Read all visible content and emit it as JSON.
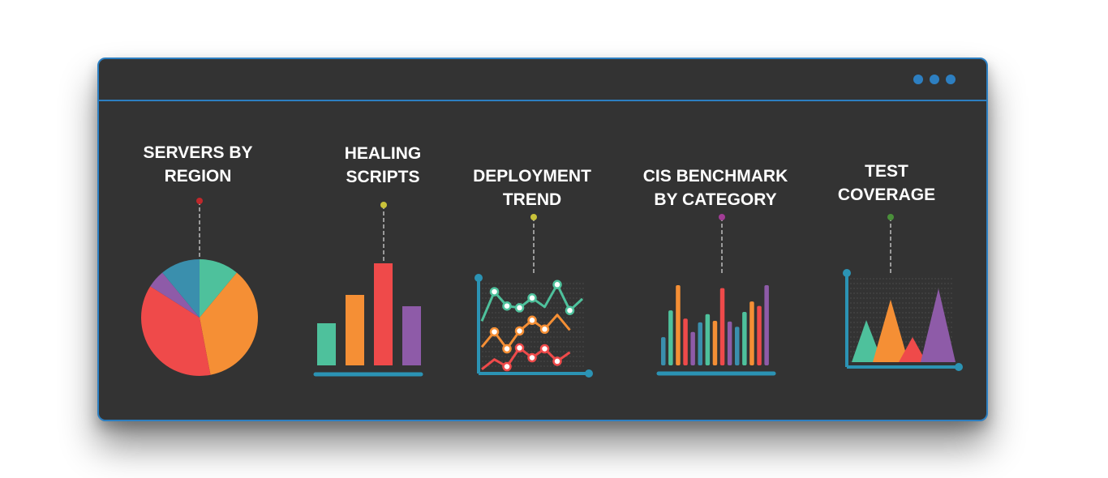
{
  "window": {
    "accent": "#2d7fc1",
    "background": "#333333",
    "controls": [
      "dot-icon",
      "dot-icon",
      "dot-icon"
    ]
  },
  "palette": {
    "green": "#4ec19c",
    "orange": "#f58f35",
    "red": "#ef4a4a",
    "purple": "#8e5ba8",
    "blue": "#3a8fad",
    "teal": "#2b93b4"
  },
  "chart_data": [
    {
      "type": "pie",
      "title": "SERVERS BY\nREGION",
      "pin_color": "#c0282b",
      "slices": [
        {
          "value": 11,
          "color": "#4ec19c"
        },
        {
          "value": 36,
          "color": "#f58f35"
        },
        {
          "value": 37,
          "color": "#ef4a4a"
        },
        {
          "value": 5,
          "color": "#8e5ba8"
        },
        {
          "value": 11,
          "color": "#3a8fad"
        }
      ]
    },
    {
      "type": "bar",
      "title": "HEALING\nSCRIPTS",
      "pin_color": "#c9c23a",
      "values": [
        52,
        87,
        126,
        73
      ],
      "colors": [
        "#4ec19c",
        "#f58f35",
        "#ef4a4a",
        "#8e5ba8"
      ],
      "ylim": [
        0,
        130
      ]
    },
    {
      "type": "line",
      "title": "DEPLOYMENT\nTREND",
      "pin_color": "#c9c23a",
      "ylim": [
        0,
        10
      ],
      "series": [
        {
          "color": "#4ec19c",
          "values": [
            5.6,
            8.9,
            7.3,
            7.1,
            8.2,
            7.2,
            9.7,
            6.8,
            8.1
          ],
          "markers": [
            1,
            2,
            3,
            4,
            6,
            7
          ]
        },
        {
          "color": "#f58f35",
          "values": [
            2.7,
            4.4,
            2.5,
            4.5,
            5.7,
            4.7,
            6.3,
            4.6
          ],
          "markers": [
            1,
            2,
            3,
            4,
            5
          ]
        },
        {
          "color": "#ef4a4a",
          "values": [
            0.2,
            1.3,
            0.5,
            2.6,
            1.5,
            2.5,
            1.1,
            2.1
          ],
          "markers": [
            2,
            3,
            4,
            5,
            6
          ]
        }
      ]
    },
    {
      "type": "bar",
      "title": "CIS BENCHMARK\nBY CATEGORY",
      "pin_color": "#a23d96",
      "ylim": [
        0,
        120
      ],
      "values": [
        38,
        74,
        108,
        63,
        45,
        58,
        69,
        60,
        104,
        59,
        52,
        72,
        86,
        80,
        108
      ],
      "colors": [
        "#3a8fad",
        "#4ec19c",
        "#f58f35",
        "#ef4a4a",
        "#8e5ba8",
        "#3a8fad",
        "#4ec19c",
        "#f58f35",
        "#ef4a4a",
        "#8e5ba8",
        "#3a8fad",
        "#4ec19c",
        "#f58f35",
        "#ef4a4a",
        "#8e5ba8"
      ]
    },
    {
      "type": "area",
      "title": "TEST\nCOVERAGE",
      "pin_color": "#4a8f3a",
      "ylim": [
        0,
        110
      ],
      "peaks": [
        {
          "color": "#4ec19c",
          "value": 57
        },
        {
          "color": "#f58f35",
          "value": 85
        },
        {
          "color": "#ef4a4a",
          "value": 34
        },
        {
          "color": "#8e5ba8",
          "value": 100
        }
      ]
    }
  ]
}
